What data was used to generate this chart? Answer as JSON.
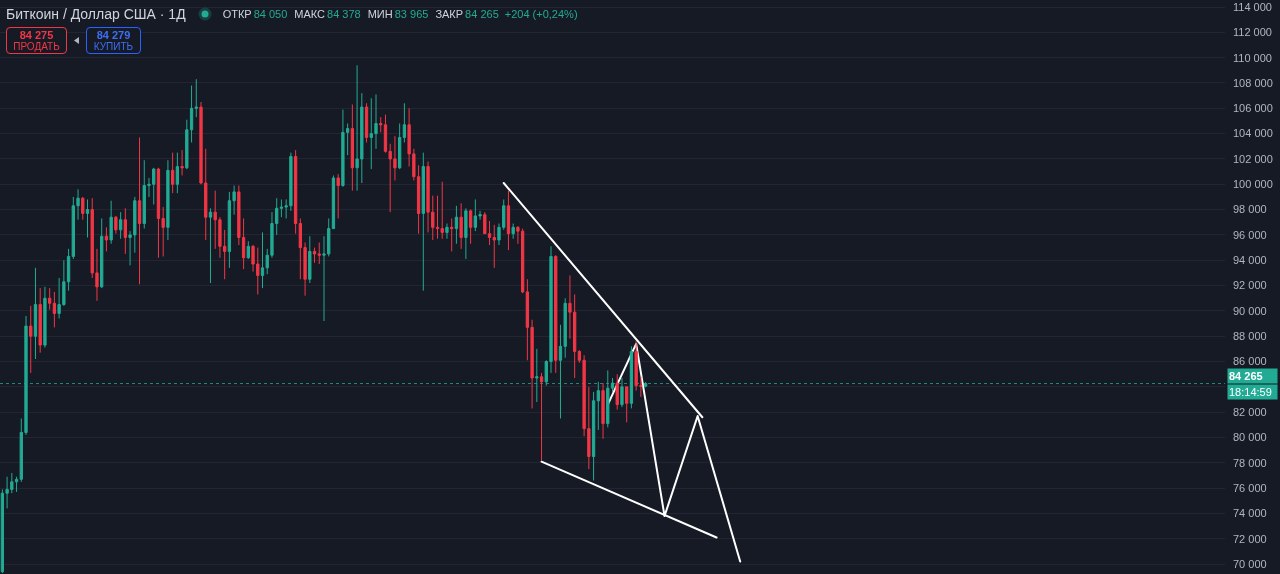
{
  "chart_data": {
    "type": "candlestick",
    "title": "Биткоин / Доллар США · 1Д",
    "annotations": [
      "ОТКР",
      "84 050",
      "МАКС",
      "84 378",
      "МИН",
      "83 965",
      "ЗАКР",
      "84 265",
      "+204 (+0,24%)",
      "84 275",
      "ПРОДАТЬ",
      "84 279",
      "КУПИТЬ",
      "18:14:59"
    ],
    "categories": [
      null,
      null,
      null,
      null,
      null,
      null,
      null,
      null,
      null,
      null,
      null,
      null,
      null,
      null,
      null,
      null,
      null,
      null,
      null,
      null,
      null,
      null,
      null,
      null,
      null,
      null,
      null,
      null,
      null,
      null,
      null,
      null,
      null,
      null,
      null,
      null,
      null,
      null,
      null,
      null,
      null,
      null,
      null,
      null,
      null,
      null,
      null,
      null,
      null,
      null,
      null,
      null,
      null,
      null,
      null,
      null,
      null,
      null,
      null,
      null,
      null,
      null,
      null,
      null,
      null,
      null,
      null,
      null,
      null,
      null,
      null,
      null,
      null,
      null,
      null,
      null,
      null,
      null,
      null,
      null,
      null,
      null,
      null,
      null,
      null,
      null,
      null,
      null,
      null,
      null,
      null,
      null,
      null,
      null,
      null,
      null,
      null,
      null,
      null,
      null,
      null,
      null,
      null,
      null,
      null,
      null,
      null,
      null,
      null,
      null,
      null,
      null,
      null,
      null,
      null,
      null,
      null,
      null,
      null,
      null,
      null,
      null,
      null,
      null,
      null,
      null,
      null,
      null,
      null,
      null,
      null,
      null,
      null,
      null,
      null,
      null,
      null,
      null,
      null,
      null,
      null,
      null,
      null,
      null,
      null,
      null,
      null,
      null,
      null,
      null,
      null,
      null,
      null,
      null,
      null,
      null,
      null,
      null,
      null,
      null,
      null,
      null,
      null,
      null,
      null,
      null,
      null,
      null,
      null,
      null,
      null,
      null,
      null,
      null,
      null,
      null,
      null,
      null,
      null,
      null,
      null,
      null,
      null,
      null,
      null,
      null,
      null,
      null,
      null,
      null,
      null,
      null,
      null,
      null,
      null,
      null,
      null,
      null,
      null,
      null,
      null,
      null,
      null,
      null,
      null,
      null,
      null,
      null,
      null,
      null,
      null,
      null,
      null,
      null,
      null,
      null,
      null,
      null,
      null,
      null,
      null,
      null,
      null,
      null,
      null,
      null,
      null,
      null,
      null,
      null,
      null,
      null,
      null,
      null,
      null,
      null,
      null,
      null,
      null,
      null,
      null,
      null,
      null,
      null,
      null,
      null,
      null,
      null,
      null,
      null,
      null,
      null,
      null,
      null,
      null,
      null,
      null,
      null,
      null
    ],
    "ohlc": [
      [
        69400,
        75900,
        69300,
        75600
      ],
      [
        75600,
        76900,
        74400,
        75900
      ],
      [
        75900,
        77200,
        75600,
        76500
      ],
      [
        76500,
        76900,
        75700,
        76700
      ],
      [
        76700,
        81500,
        76500,
        80400
      ],
      [
        80400,
        89600,
        80200,
        88800
      ],
      [
        88800,
        90400,
        85100,
        88000
      ],
      [
        88000,
        93400,
        86200,
        90500
      ],
      [
        90500,
        91800,
        86700,
        87300
      ],
      [
        87300,
        91900,
        87100,
        91000
      ],
      [
        91000,
        91800,
        90100,
        90600
      ],
      [
        90600,
        91500,
        88700,
        89800
      ],
      [
        89800,
        92600,
        89400,
        90500
      ],
      [
        90500,
        94000,
        90400,
        92300
      ],
      [
        92300,
        94900,
        91600,
        94300
      ],
      [
        94300,
        99000,
        94100,
        98300
      ],
      [
        98300,
        99600,
        97200,
        98900
      ],
      [
        98900,
        99000,
        97200,
        97700
      ],
      [
        97700,
        98800,
        95800,
        98000
      ],
      [
        98000,
        98900,
        92600,
        93000
      ],
      [
        93000,
        94900,
        90800,
        91900
      ],
      [
        91900,
        97300,
        91800,
        95900
      ],
      [
        95900,
        96600,
        94700,
        95600
      ],
      [
        95600,
        98700,
        95300,
        97400
      ],
      [
        97400,
        97500,
        96100,
        96400
      ],
      [
        96400,
        97800,
        95700,
        97200
      ],
      [
        97200,
        98100,
        94500,
        95800
      ],
      [
        95800,
        96300,
        93600,
        96000
      ],
      [
        96000,
        99000,
        94600,
        98700
      ],
      [
        98700,
        103700,
        92100,
        96900
      ],
      [
        96900,
        101900,
        96500,
        99900
      ],
      [
        99900,
        100500,
        99000,
        100000
      ],
      [
        100000,
        101300,
        98400,
        101200
      ],
      [
        101200,
        101300,
        94200,
        97300
      ],
      [
        97300,
        98200,
        94300,
        96600
      ],
      [
        96600,
        101900,
        95600,
        101100
      ],
      [
        101100,
        102500,
        99300,
        100000
      ],
      [
        100000,
        102500,
        99300,
        101400
      ],
      [
        101400,
        102700,
        100700,
        101300
      ],
      [
        101300,
        105100,
        101200,
        104300
      ],
      [
        104300,
        107800,
        103300,
        106000
      ],
      [
        106000,
        108300,
        105300,
        106100
      ],
      [
        106100,
        106500,
        100000,
        100100
      ],
      [
        100100,
        102800,
        95600,
        97400
      ],
      [
        97400,
        98100,
        92200,
        97800
      ],
      [
        97800,
        99500,
        94900,
        97200
      ],
      [
        97200,
        97400,
        94200,
        95100
      ],
      [
        95100,
        96400,
        92500,
        94700
      ],
      [
        94700,
        99400,
        93400,
        98700
      ],
      [
        98700,
        99900,
        97600,
        99400
      ],
      [
        99400,
        99900,
        95200,
        95800
      ],
      [
        95800,
        97300,
        93300,
        94200
      ],
      [
        94200,
        95500,
        94100,
        95100
      ],
      [
        95100,
        95200,
        93100,
        93700
      ],
      [
        93700,
        95000,
        91300,
        92800
      ],
      [
        92800,
        96200,
        91800,
        93400
      ],
      [
        93400,
        94900,
        92900,
        94400
      ],
      [
        94400,
        97800,
        94200,
        96900
      ],
      [
        96900,
        98900,
        96000,
        98100
      ],
      [
        98100,
        98800,
        97400,
        98200
      ],
      [
        98200,
        98800,
        97300,
        98300
      ],
      [
        98300,
        102500,
        97900,
        102200
      ],
      [
        102200,
        102700,
        96100,
        96900
      ],
      [
        96900,
        97300,
        92500,
        95000
      ],
      [
        95000,
        95400,
        91200,
        92500
      ],
      [
        92500,
        95900,
        92200,
        94700
      ],
      [
        94700,
        95000,
        93800,
        94500
      ],
      [
        94500,
        95400,
        93700,
        94400
      ],
      [
        94400,
        95900,
        89200,
        94500
      ],
      [
        94500,
        97300,
        94300,
        96500
      ],
      [
        96500,
        100700,
        96500,
        100500
      ],
      [
        100500,
        100800,
        97300,
        99900
      ],
      [
        99900,
        105900,
        99800,
        104100
      ],
      [
        104100,
        104800,
        102300,
        104400
      ],
      [
        104400,
        106300,
        99500,
        101300
      ],
      [
        101300,
        109400,
        99500,
        102000
      ],
      [
        102000,
        107200,
        100100,
        106100
      ],
      [
        106100,
        106400,
        103300,
        103700
      ],
      [
        103700,
        106800,
        101200,
        104000
      ],
      [
        104000,
        107100,
        102800,
        104800
      ],
      [
        104800,
        105300,
        104100,
        104700
      ],
      [
        104700,
        105500,
        102500,
        102600
      ],
      [
        102600,
        103200,
        97800,
        102000
      ],
      [
        102000,
        103800,
        100300,
        101300
      ],
      [
        101300,
        104800,
        101200,
        103700
      ],
      [
        103700,
        106400,
        103300,
        104700
      ],
      [
        104700,
        106000,
        101400,
        102400
      ],
      [
        102400,
        102800,
        100300,
        100600
      ],
      [
        100600,
        101500,
        96100,
        97700
      ],
      [
        97700,
        102500,
        91600,
        101400
      ],
      [
        101400,
        101800,
        96200,
        97800
      ],
      [
        97800,
        99100,
        95600,
        96600
      ],
      [
        96600,
        99100,
        95700,
        96500
      ],
      [
        96500,
        100200,
        95700,
        96200
      ],
      [
        96200,
        96900,
        95700,
        96600
      ],
      [
        96600,
        97300,
        94700,
        96500
      ],
      [
        96500,
        98300,
        95300,
        97400
      ],
      [
        97400,
        98500,
        94900,
        95800
      ],
      [
        95800,
        98100,
        94100,
        97900
      ],
      [
        97900,
        98000,
        95300,
        96600
      ],
      [
        96600,
        98800,
        96300,
        97500
      ],
      [
        97500,
        97900,
        97200,
        97600
      ],
      [
        97600,
        97800,
        96100,
        96100
      ],
      [
        96100,
        97100,
        95200,
        95800
      ],
      [
        95800,
        96800,
        93400,
        95600
      ],
      [
        95600,
        96900,
        95200,
        96600
      ],
      [
        96600,
        98800,
        96400,
        98300
      ],
      [
        98300,
        99500,
        94800,
        96100
      ],
      [
        96100,
        96900,
        95700,
        96600
      ],
      [
        96600,
        96700,
        95300,
        96300
      ],
      [
        96300,
        96500,
        91400,
        91500
      ],
      [
        91500,
        92500,
        86100,
        88700
      ],
      [
        88700,
        89300,
        82300,
        84700
      ],
      [
        84700,
        87000,
        82800,
        84800
      ],
      [
        84800,
        85100,
        78200,
        84400
      ],
      [
        84400,
        86100,
        84100,
        86000
      ],
      [
        86000,
        95100,
        85100,
        94300
      ],
      [
        94300,
        94400,
        85100,
        86100
      ],
      [
        86100,
        88900,
        81500,
        87200
      ],
      [
        87200,
        91000,
        86300,
        90600
      ],
      [
        90600,
        92800,
        87800,
        89900
      ],
      [
        89900,
        91300,
        84700,
        86800
      ],
      [
        86800,
        86900,
        85900,
        86100
      ],
      [
        86100,
        86500,
        80100,
        80700
      ],
      [
        80700,
        84000,
        77500,
        78500
      ],
      [
        78500,
        83600,
        76600,
        82900
      ],
      [
        82900,
        84400,
        80600,
        83700
      ],
      [
        83700,
        84300,
        79900,
        81100
      ],
      [
        81100,
        85300,
        80800,
        83900
      ],
      [
        83900,
        84700,
        83600,
        84300
      ],
      [
        84300,
        85000,
        82200,
        82600
      ],
      [
        82600,
        84700,
        82400,
        84000
      ],
      [
        84000,
        84000,
        81200,
        82700
      ],
      [
        82700,
        87200,
        82300,
        86800
      ],
      [
        86800,
        87600,
        83700,
        84100
      ],
      [
        84100,
        84800,
        83200,
        84050
      ],
      [
        84050,
        84378,
        83965,
        84265
      ],
      null,
      null,
      null,
      null,
      null,
      null,
      null,
      null,
      null,
      null,
      null,
      null,
      null,
      null,
      null,
      null,
      null,
      null,
      null,
      null,
      null,
      null,
      null,
      null,
      null,
      null,
      null,
      null,
      null,
      null,
      null,
      null,
      null,
      null,
      null,
      null,
      null,
      null,
      null,
      null,
      null,
      null,
      null,
      null,
      null,
      null,
      null,
      null,
      null,
      null,
      null,
      null,
      null,
      null,
      null,
      null,
      null,
      null,
      null,
      null,
      null,
      null,
      null,
      null,
      null,
      null,
      null,
      null,
      null,
      null,
      null,
      null,
      null,
      null,
      null,
      null,
      null,
      null,
      null,
      null,
      null,
      null,
      null,
      null,
      null,
      null,
      null,
      null,
      null,
      null,
      null,
      null,
      null,
      null,
      null,
      null,
      null,
      null,
      null,
      null,
      null,
      null,
      null,
      null,
      null,
      null,
      null,
      null,
      null,
      null,
      null,
      null,
      null,
      null,
      null,
      null,
      null,
      null,
      null,
      null,
      null,
      null
    ],
    "colors": [
      "#22ab94",
      "#22ab94",
      "#22ab94",
      "#22ab94",
      "#22ab94",
      "#22ab94",
      "#f23645",
      "#22ab94",
      "#f23645",
      "#22ab94",
      "#f23645",
      "#f23645",
      "#22ab94",
      "#22ab94",
      "#22ab94",
      "#22ab94",
      "#22ab94",
      "#f23645",
      "#22ab94",
      "#f23645",
      "#f23645",
      "#22ab94",
      "#f23645",
      "#22ab94",
      "#f23645",
      "#22ab94",
      "#f23645",
      "#22ab94",
      "#22ab94",
      "#f23645",
      "#22ab94",
      "#22ab94",
      "#22ab94",
      "#f23645",
      "#f23645",
      "#22ab94",
      "#f23645",
      "#22ab94",
      "#f23645",
      "#22ab94",
      "#22ab94",
      "#22ab94",
      "#f23645",
      "#f23645",
      "#22ab94",
      "#f23645",
      "#f23645",
      "#f23645",
      "#22ab94",
      "#22ab94",
      "#f23645",
      "#f23645",
      "#22ab94",
      "#f23645",
      "#f23645",
      "#22ab94",
      "#22ab94",
      "#22ab94",
      "#22ab94",
      "#22ab94",
      "#22ab94",
      "#22ab94",
      "#f23645",
      "#f23645",
      "#f23645",
      "#22ab94",
      "#f23645",
      "#f23645",
      "#22ab94",
      "#22ab94",
      "#22ab94",
      "#f23645",
      "#22ab94",
      "#22ab94",
      "#f23645",
      "#22ab94",
      "#22ab94",
      "#f23645",
      "#22ab94",
      "#22ab94",
      "#f23645",
      "#f23645",
      "#f23645",
      "#f23645",
      "#22ab94",
      "#22ab94",
      "#f23645",
      "#f23645",
      "#f23645",
      "#22ab94",
      "#f23645",
      "#f23645",
      "#f23645",
      "#f23645",
      "#22ab94",
      "#f23645",
      "#22ab94",
      "#f23645",
      "#22ab94",
      "#f23645",
      "#22ab94",
      "#22ab94",
      "#f23645",
      "#f23645",
      "#f23645",
      "#22ab94",
      "#22ab94",
      "#f23645",
      "#22ab94",
      "#f23645",
      "#f23645",
      "#f23645",
      "#f23645",
      "#22ab94",
      "#f23645",
      "#22ab94",
      "#22ab94",
      "#f23645",
      "#22ab94",
      "#22ab94",
      "#f23645",
      "#f23645",
      "#f23645",
      "#f23645",
      "#f23645",
      "#22ab94",
      "#22ab94",
      "#f23645",
      "#22ab94",
      "#22ab94",
      "#f23645",
      "#22ab94",
      "#f23645",
      "#22ab94",
      "#f23645",
      "#f23645",
      "#22ab94",
      null,
      null,
      null,
      null,
      null,
      null,
      null,
      null,
      null,
      null,
      null,
      null,
      null,
      null,
      null,
      null,
      null,
      null,
      null,
      null,
      null,
      null,
      null,
      null,
      null,
      null,
      null,
      null,
      null,
      null,
      null,
      null,
      null,
      null,
      null,
      null,
      null,
      null,
      null,
      null,
      null,
      null,
      null,
      null,
      null,
      null,
      null,
      null,
      null,
      null,
      null,
      null,
      null,
      null,
      null,
      null,
      null,
      null,
      null,
      null,
      null,
      null,
      null,
      null,
      null,
      null,
      null,
      null,
      null,
      null,
      null,
      null,
      null,
      null,
      null,
      null,
      null,
      null,
      null,
      null,
      null,
      null,
      null,
      null,
      null,
      null,
      null,
      null,
      null,
      null,
      null,
      null,
      null,
      null,
      null,
      null,
      null,
      null,
      null,
      null,
      null,
      null,
      null,
      null,
      null,
      null,
      null,
      null,
      null,
      null,
      null,
      null,
      null,
      null,
      null,
      null,
      null,
      null,
      null,
      null,
      null,
      null
    ],
    "series": [
      {
        "type": "line",
        "color": "#ffffff",
        "values": [
          null,
          null,
          null,
          null,
          null,
          null,
          null,
          null,
          null,
          null,
          null,
          null,
          null,
          null,
          null,
          null,
          null,
          null,
          null,
          null,
          null,
          null,
          null,
          null,
          null,
          null,
          null,
          null,
          null,
          null,
          null,
          null,
          null,
          null,
          null,
          null,
          null,
          null,
          null,
          null,
          null,
          null,
          null,
          null,
          null,
          null,
          null,
          null,
          null,
          null,
          null,
          null,
          null,
          null,
          null,
          null,
          null,
          null,
          null,
          null,
          null,
          null,
          null,
          null,
          null,
          null,
          null,
          null,
          null,
          null,
          null,
          null,
          null,
          null,
          null,
          null,
          null,
          null,
          null,
          null,
          null,
          null,
          null,
          null,
          null,
          null,
          null,
          null,
          null,
          null,
          null,
          null,
          null,
          null,
          null,
          null,
          null,
          null,
          null,
          null,
          null,
          null,
          null,
          null,
          null,
          null,
          100100,
          null,
          null,
          null,
          null,
          null,
          null,
          null,
          null,
          null,
          null,
          null,
          null,
          null,
          null,
          null,
          null,
          null,
          null,
          null,
          null,
          null,
          null,
          null,
          null,
          null,
          null,
          null,
          null,
          null,
          null,
          null,
          null,
          null,
          null,
          null,
          null,
          null,
          null,
          null,
          null,
          null,
          81600,
          null,
          null,
          null,
          null,
          null,
          null,
          null,
          null,
          null,
          null,
          null,
          null,
          null,
          null,
          null,
          null,
          null,
          null,
          null,
          null,
          null,
          null,
          null,
          null,
          null,
          null,
          null,
          null,
          null,
          null,
          null,
          null,
          null,
          null,
          null,
          null,
          null,
          null,
          null,
          null,
          null,
          null,
          null,
          null,
          null,
          null,
          null,
          null,
          null,
          null,
          null,
          null,
          null,
          null,
          null,
          null,
          null,
          null,
          null,
          null,
          null,
          null,
          null,
          null,
          null,
          null,
          null,
          null,
          null,
          null,
          null,
          null,
          null,
          null,
          null,
          null,
          null,
          null,
          null,
          null,
          null,
          null,
          null,
          null,
          null,
          null,
          null,
          null,
          null,
          null,
          null,
          null,
          null,
          null,
          null,
          null,
          null,
          null,
          null,
          null,
          null,
          null,
          null,
          null,
          null,
          null,
          null,
          null,
          null,
          null
        ]
      },
      {
        "type": "line",
        "color": "#ffffff",
        "values": [
          null,
          null,
          null,
          null,
          null,
          null,
          null,
          null,
          null,
          null,
          null,
          null,
          null,
          null,
          null,
          null,
          null,
          null,
          null,
          null,
          null,
          null,
          null,
          null,
          null,
          null,
          null,
          null,
          null,
          null,
          null,
          null,
          null,
          null,
          null,
          null,
          null,
          null,
          null,
          null,
          null,
          null,
          null,
          null,
          null,
          null,
          null,
          null,
          null,
          null,
          null,
          null,
          null,
          null,
          null,
          null,
          null,
          null,
          null,
          null,
          null,
          null,
          null,
          null,
          null,
          null,
          null,
          null,
          null,
          null,
          null,
          null,
          null,
          null,
          null,
          null,
          null,
          null,
          null,
          null,
          null,
          null,
          null,
          null,
          null,
          null,
          null,
          null,
          null,
          null,
          null,
          null,
          null,
          null,
          null,
          null,
          null,
          null,
          null,
          null,
          null,
          null,
          null,
          null,
          null,
          null,
          null,
          null,
          null,
          null,
          null,
          null,
          null,
          null,
          78100,
          null,
          null,
          null,
          null,
          null,
          null,
          null,
          null,
          null,
          null,
          null,
          null,
          null,
          null,
          null,
          null,
          null,
          null,
          null,
          null,
          null,
          null,
          null,
          null,
          null,
          null,
          null,
          null,
          null,
          null,
          null,
          null,
          null,
          null,
          null,
          null,
          72100,
          null,
          null,
          null,
          null,
          null,
          null,
          null,
          null,
          null,
          null,
          null,
          null,
          null,
          null,
          null,
          null,
          null,
          null,
          null,
          null,
          null,
          null,
          null,
          null,
          null,
          null,
          null,
          null,
          null,
          null,
          null,
          null,
          null,
          null,
          null,
          null,
          null,
          null,
          null,
          null,
          null,
          null,
          null,
          null,
          null,
          null,
          null,
          null,
          null,
          null,
          null,
          null,
          null,
          null,
          null,
          null,
          null,
          null,
          null,
          null,
          null,
          null,
          null,
          null,
          null,
          null,
          null,
          null,
          null,
          null,
          null,
          null,
          null,
          null,
          null,
          null,
          null,
          null,
          null,
          null,
          null,
          null,
          null,
          null,
          null,
          null,
          null,
          null,
          null,
          null,
          null,
          null,
          null,
          null,
          null,
          null,
          null,
          null,
          null,
          null,
          null,
          null,
          null,
          null,
          null,
          null,
          null
        ]
      },
      {
        "type": "line",
        "color": "#ffffff",
        "values": [
          null,
          null,
          null,
          null,
          null,
          null,
          null,
          null,
          null,
          null,
          null,
          null,
          null,
          null,
          null,
          null,
          null,
          null,
          null,
          null,
          null,
          null,
          null,
          null,
          null,
          null,
          null,
          null,
          null,
          null,
          null,
          null,
          null,
          null,
          null,
          null,
          null,
          null,
          null,
          null,
          null,
          null,
          null,
          null,
          null,
          null,
          null,
          null,
          null,
          null,
          null,
          null,
          null,
          null,
          null,
          null,
          null,
          null,
          null,
          null,
          null,
          null,
          null,
          null,
          null,
          null,
          null,
          null,
          null,
          null,
          null,
          null,
          null,
          null,
          null,
          null,
          null,
          null,
          null,
          null,
          null,
          null,
          null,
          null,
          null,
          null,
          null,
          null,
          null,
          null,
          null,
          null,
          null,
          null,
          null,
          null,
          null,
          null,
          null,
          null,
          null,
          null,
          null,
          null,
          null,
          null,
          null,
          null,
          null,
          null,
          null,
          null,
          null,
          null,
          null,
          null,
          null,
          null,
          null,
          null,
          null,
          null,
          null,
          null,
          null,
          null,
          null,
          null,
          82600,
          null,
          null,
          null,
          null,
          null,
          87400,
          null,
          null,
          null,
          null,
          null,
          73800,
          null,
          null,
          null,
          null,
          null,
          null,
          81700,
          null,
          null,
          null,
          null,
          null,
          null,
          null,
          null,
          70200,
          null,
          null,
          null,
          null,
          null,
          null,
          null,
          null,
          null,
          null,
          null,
          null,
          null,
          null,
          null,
          null,
          null,
          null,
          null,
          null,
          null,
          null,
          null,
          null,
          null,
          null,
          null,
          null,
          null,
          null,
          null,
          null,
          null,
          null,
          null,
          null,
          null,
          null,
          null,
          null,
          null,
          null,
          null,
          null,
          null,
          null,
          null,
          null,
          null,
          null,
          null,
          null,
          null,
          null,
          null,
          null,
          null,
          null,
          null,
          null,
          null,
          null,
          null,
          null,
          null,
          null,
          null,
          null,
          null,
          null,
          null,
          null,
          null,
          null,
          null,
          null,
          null,
          null,
          null,
          null,
          null,
          null,
          null,
          null,
          null,
          null,
          null,
          null,
          null,
          null,
          null,
          null,
          null,
          null,
          null,
          null,
          null,
          null,
          null,
          null,
          null,
          null
        ]
      }
    ],
    "ref_lines": [
      {
        "axis": "y",
        "value": 84265,
        "label": "84 265",
        "color": "#22ab94",
        "line_style": "dotted"
      }
    ],
    "ylim": [
      69220,
      114160
    ],
    "yticks": [
      {
        "value": 70000,
        "label": "70 000"
      },
      {
        "value": 72000,
        "label": "72 000"
      },
      {
        "value": 74000,
        "label": "74 000"
      },
      {
        "value": 76000,
        "label": "76 000"
      },
      {
        "value": 78000,
        "label": "78 000"
      },
      {
        "value": 80000,
        "label": "80 000"
      },
      {
        "value": 82000,
        "label": "82 000"
      },
      {
        "value": 84000,
        "label": null
      },
      {
        "value": 86000,
        "label": "86 000"
      },
      {
        "value": 88000,
        "label": "88 000"
      },
      {
        "value": 90000,
        "label": "90 000"
      },
      {
        "value": 92000,
        "label": "92 000"
      },
      {
        "value": 94000,
        "label": "94 000"
      },
      {
        "value": 96000,
        "label": "96 000"
      },
      {
        "value": 98000,
        "label": "98 000"
      },
      {
        "value": 100000,
        "label": "100 000"
      },
      {
        "value": 102000,
        "label": "102 000"
      },
      {
        "value": 104000,
        "label": "104 000"
      },
      {
        "value": 106000,
        "label": "106 000"
      },
      {
        "value": 108000,
        "label": "108 000"
      },
      {
        "value": 110000,
        "label": "110 000"
      },
      {
        "value": 112000,
        "label": "112 000"
      },
      {
        "value": 114000,
        "label": "114 000"
      }
    ],
    "grid": "y",
    "tick_labels": "y"
  }
}
